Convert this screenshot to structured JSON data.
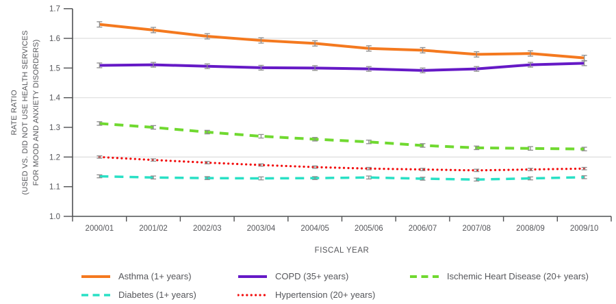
{
  "page": {
    "background": "#FFFFFF"
  },
  "colors": {
    "axis": "#4F5052",
    "tick_text": "#55565A",
    "gridline": "#DEDEDE",
    "error_bar": "#8C8C8C"
  },
  "chart_data": {
    "type": "line",
    "title": "",
    "xlabel": "FISCAL YEAR",
    "ylabel": "RATE RATIO (USED VS. DID NOT USE HEALTH SERVICES FOR MOOD AND ANXIETY DISORDERS)",
    "ylabel_lines": [
      "RATE RATIO",
      "(USED VS. DID NOT USE HEALTH SERVICES",
      "FOR MOOD AND ANXIETY DISORDERS)"
    ],
    "categories": [
      "2000/01",
      "2001/02",
      "2002/03",
      "2003/04",
      "2004/05",
      "2005/06",
      "2006/07",
      "2007/08",
      "2008/09",
      "2009/10"
    ],
    "ylim": [
      1.0,
      1.7
    ],
    "ytick_labels": [
      "1.0",
      "1.1",
      "1.2",
      "1.3",
      "1.4",
      "1.5",
      "1.6",
      "1.7"
    ],
    "gridlines_at": [
      1.2,
      1.4,
      1.6
    ],
    "grid": "horizontal-partial",
    "legend_position": "bottom",
    "error_bars": true,
    "series": [
      {
        "id": "asthma",
        "name": "Asthma (1+ years)",
        "color": "#F4791F",
        "dash": "solid",
        "stroke_width": 4,
        "error": 0.009,
        "values": [
          1.647,
          1.628,
          1.607,
          1.593,
          1.583,
          1.566,
          1.56,
          1.546,
          1.549,
          1.534
        ]
      },
      {
        "id": "copd",
        "name": "COPD (35+ years)",
        "color": "#6519C6",
        "dash": "solid",
        "stroke_width": 4,
        "error": 0.008,
        "values": [
          1.509,
          1.511,
          1.506,
          1.501,
          1.5,
          1.497,
          1.492,
          1.497,
          1.511,
          1.516
        ]
      },
      {
        "id": "ihd",
        "name": "Ischemic Heart Disease (20+ years)",
        "color": "#70D930",
        "dash": "dashed",
        "stroke_width": 4,
        "error": 0.006,
        "values": [
          1.313,
          1.3,
          1.284,
          1.27,
          1.26,
          1.251,
          1.239,
          1.231,
          1.229,
          1.227
        ]
      },
      {
        "id": "diabetes",
        "name": "Diabetes (1+ years)",
        "color": "#29E0C5",
        "dash": "dashed",
        "stroke_width": 3.5,
        "error": 0.005,
        "values": [
          1.135,
          1.131,
          1.129,
          1.128,
          1.129,
          1.131,
          1.127,
          1.124,
          1.128,
          1.132
        ]
      },
      {
        "id": "hypertension",
        "name": "Hypertension (20+ years)",
        "color": "#F20D0D",
        "dash": "dotted",
        "stroke_width": 3.2,
        "error": 0.004,
        "values": [
          1.2,
          1.19,
          1.181,
          1.173,
          1.166,
          1.161,
          1.158,
          1.155,
          1.158,
          1.161
        ]
      }
    ]
  },
  "legend": {
    "items": [
      {
        "label": "Asthma (1+ years)",
        "series": "asthma"
      },
      {
        "label": "COPD (35+ years)",
        "series": "copd"
      },
      {
        "label": "Ischemic Heart Disease (20+ years)",
        "series": "ihd"
      },
      {
        "label": "Diabetes (1+ years)",
        "series": "diabetes"
      },
      {
        "label": "Hypertension (20+ years)",
        "series": "hypertension"
      }
    ]
  }
}
